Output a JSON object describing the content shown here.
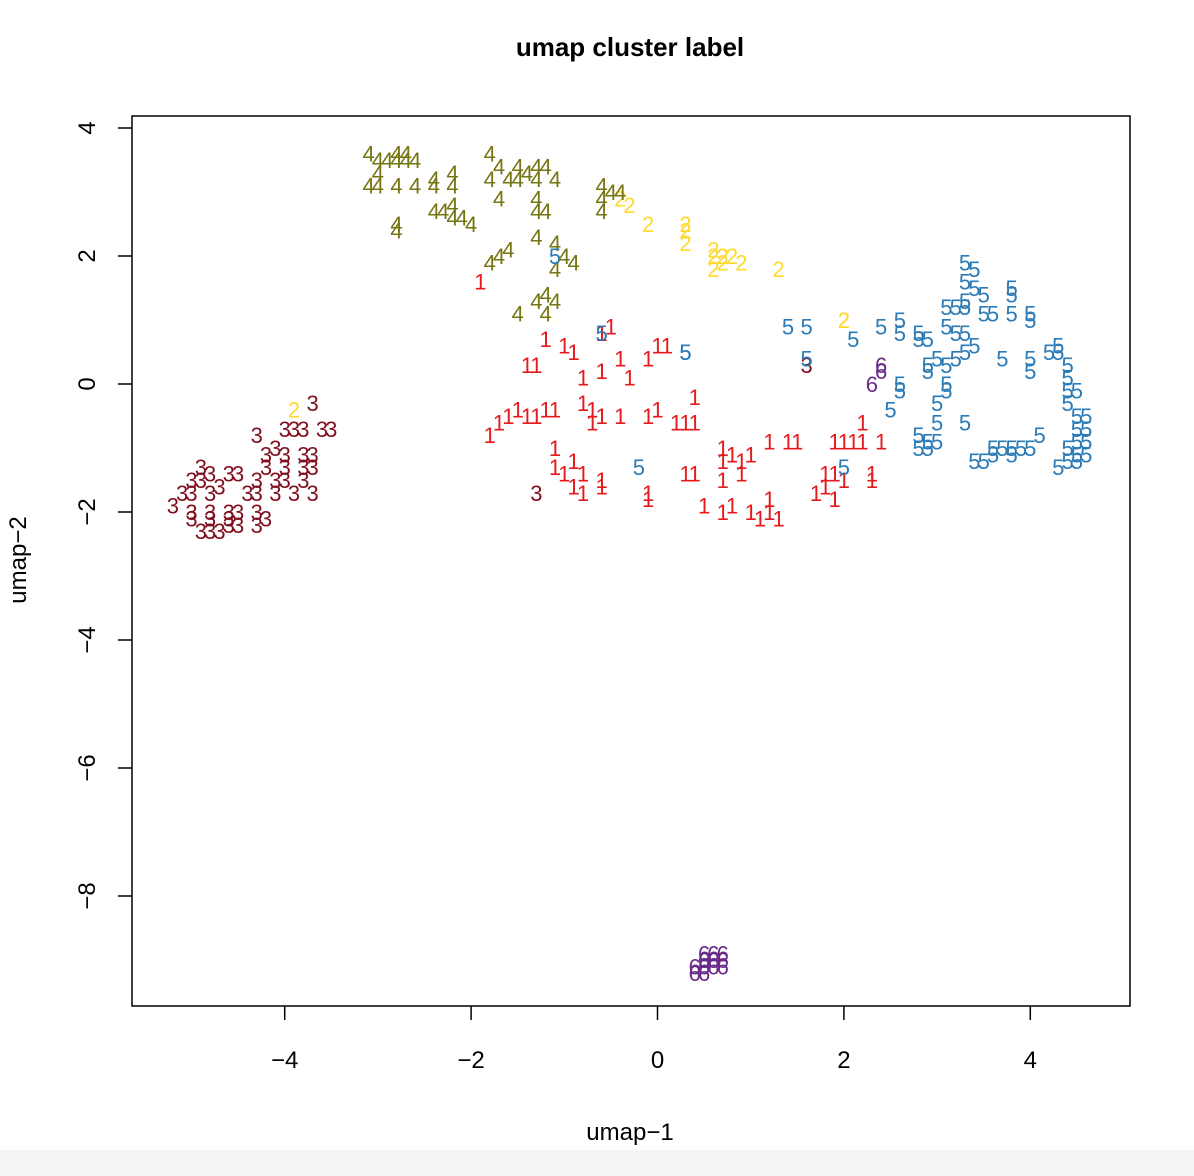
{
  "chart_data": {
    "type": "scatter",
    "title": "umap cluster label",
    "xlabel": "umap−1",
    "ylabel": "umap−2",
    "xlim": [
      -5.5,
      5.2
    ],
    "ylim": [
      -9.8,
      4.2
    ],
    "xticks": [
      -4,
      -2,
      0,
      2,
      4
    ],
    "yticks": [
      -8,
      -6,
      -4,
      -2,
      0,
      2,
      4
    ],
    "xtick_labels": [
      "−4",
      "−2",
      "0",
      "2",
      "4"
    ],
    "ytick_labels": [
      "−8",
      "−6",
      "−4",
      "−2",
      "0",
      "2",
      "4"
    ],
    "marker": "cluster number as text",
    "series": [
      {
        "name": "1",
        "color": "#e41a1c",
        "points": [
          [
            -1.9,
            1.6
          ],
          [
            -1.2,
            0.7
          ],
          [
            -1.3,
            0.3
          ],
          [
            -1.4,
            0.3
          ],
          [
            -0.9,
            0.5
          ],
          [
            -1.0,
            0.6
          ],
          [
            -0.6,
            0.8
          ],
          [
            -0.5,
            0.9
          ],
          [
            -0.4,
            0.4
          ],
          [
            -0.6,
            0.2
          ],
          [
            -0.8,
            0.1
          ],
          [
            -0.3,
            0.1
          ],
          [
            -0.1,
            0.4
          ],
          [
            0.0,
            0.6
          ],
          [
            0.1,
            0.6
          ],
          [
            0.4,
            -0.2
          ],
          [
            -1.5,
            -0.4
          ],
          [
            -1.6,
            -0.5
          ],
          [
            -1.4,
            -0.5
          ],
          [
            -1.3,
            -0.5
          ],
          [
            -1.8,
            -0.8
          ],
          [
            -1.7,
            -0.6
          ],
          [
            -1.2,
            -0.4
          ],
          [
            -1.1,
            -0.4
          ],
          [
            -0.8,
            -0.3
          ],
          [
            -0.7,
            -0.4
          ],
          [
            -0.6,
            -0.5
          ],
          [
            -0.7,
            -0.6
          ],
          [
            -0.4,
            -0.5
          ],
          [
            0.0,
            -0.4
          ],
          [
            -0.1,
            -0.5
          ],
          [
            0.2,
            -0.6
          ],
          [
            0.3,
            -0.6
          ],
          [
            0.4,
            -0.6
          ],
          [
            -1.1,
            -1.0
          ],
          [
            -1.1,
            -1.3
          ],
          [
            -1.0,
            -1.4
          ],
          [
            -0.9,
            -1.2
          ],
          [
            -0.8,
            -1.4
          ],
          [
            -0.9,
            -1.6
          ],
          [
            -0.8,
            -1.7
          ],
          [
            -0.6,
            -1.5
          ],
          [
            -0.6,
            -1.6
          ],
          [
            -0.1,
            -1.7
          ],
          [
            -0.1,
            -1.8
          ],
          [
            0.3,
            -1.4
          ],
          [
            0.4,
            -1.4
          ],
          [
            0.7,
            -1.0
          ],
          [
            0.7,
            -1.2
          ],
          [
            0.8,
            -1.1
          ],
          [
            0.9,
            -1.2
          ],
          [
            1.0,
            -1.1
          ],
          [
            0.9,
            -1.4
          ],
          [
            0.7,
            -1.5
          ],
          [
            1.2,
            -0.9
          ],
          [
            1.4,
            -0.9
          ],
          [
            1.5,
            -0.9
          ],
          [
            0.5,
            -1.9
          ],
          [
            0.7,
            -2.0
          ],
          [
            0.8,
            -1.9
          ],
          [
            1.0,
            -2.0
          ],
          [
            1.1,
            -2.1
          ],
          [
            1.2,
            -2.0
          ],
          [
            1.3,
            -2.1
          ],
          [
            1.2,
            -1.8
          ],
          [
            1.7,
            -1.7
          ],
          [
            1.8,
            -1.6
          ],
          [
            1.9,
            -1.8
          ],
          [
            1.8,
            -1.4
          ],
          [
            1.9,
            -1.4
          ],
          [
            2.0,
            -1.5
          ],
          [
            1.9,
            -0.9
          ],
          [
            2.0,
            -0.9
          ],
          [
            2.1,
            -0.9
          ],
          [
            2.2,
            -0.9
          ],
          [
            2.4,
            -0.9
          ],
          [
            2.2,
            -0.6
          ],
          [
            2.3,
            -1.4
          ],
          [
            2.3,
            -1.5
          ]
        ]
      },
      {
        "name": "2",
        "color": "#ffd92f",
        "points": [
          [
            -3.9,
            -0.4
          ],
          [
            -0.4,
            2.9
          ],
          [
            -0.3,
            2.8
          ],
          [
            -0.1,
            2.5
          ],
          [
            0.3,
            2.5
          ],
          [
            0.3,
            2.4
          ],
          [
            0.3,
            2.2
          ],
          [
            0.6,
            2.1
          ],
          [
            0.6,
            2.0
          ],
          [
            0.7,
            2.0
          ],
          [
            0.7,
            2.0
          ],
          [
            0.8,
            2.0
          ],
          [
            0.7,
            1.9
          ],
          [
            0.9,
            1.9
          ],
          [
            0.6,
            1.8
          ],
          [
            1.3,
            1.8
          ],
          [
            2.0,
            1.0
          ],
          [
            2.0,
            1.0
          ]
        ]
      },
      {
        "name": "3",
        "color": "#7f0f1f",
        "points": [
          [
            -3.7,
            -0.3
          ],
          [
            -3.8,
            -0.7
          ],
          [
            -3.6,
            -0.7
          ],
          [
            -3.5,
            -0.7
          ],
          [
            -4.0,
            -0.7
          ],
          [
            -3.9,
            -0.7
          ],
          [
            -4.3,
            -0.8
          ],
          [
            -4.1,
            -1.0
          ],
          [
            -4.2,
            -1.1
          ],
          [
            -4.0,
            -1.1
          ],
          [
            -3.8,
            -1.1
          ],
          [
            -3.7,
            -1.1
          ],
          [
            -4.2,
            -1.3
          ],
          [
            -4.0,
            -1.3
          ],
          [
            -3.8,
            -1.3
          ],
          [
            -3.7,
            -1.3
          ],
          [
            -4.3,
            -1.5
          ],
          [
            -4.1,
            -1.5
          ],
          [
            -4.0,
            -1.5
          ],
          [
            -3.8,
            -1.5
          ],
          [
            -4.4,
            -1.7
          ],
          [
            -4.3,
            -1.7
          ],
          [
            -4.1,
            -1.7
          ],
          [
            -3.9,
            -1.7
          ],
          [
            -3.7,
            -1.7
          ],
          [
            -4.9,
            -1.3
          ],
          [
            -4.8,
            -1.4
          ],
          [
            -4.6,
            -1.4
          ],
          [
            -4.5,
            -1.4
          ],
          [
            -5.0,
            -1.5
          ],
          [
            -4.9,
            -1.5
          ],
          [
            -4.7,
            -1.6
          ],
          [
            -5.1,
            -1.7
          ],
          [
            -5.0,
            -1.7
          ],
          [
            -4.8,
            -1.7
          ],
          [
            -5.2,
            -1.9
          ],
          [
            -5.0,
            -2.0
          ],
          [
            -4.8,
            -2.0
          ],
          [
            -4.6,
            -2.0
          ],
          [
            -4.5,
            -2.0
          ],
          [
            -4.3,
            -2.0
          ],
          [
            -5.0,
            -2.1
          ],
          [
            -4.8,
            -2.1
          ],
          [
            -4.6,
            -2.1
          ],
          [
            -4.5,
            -2.2
          ],
          [
            -4.3,
            -2.2
          ],
          [
            -4.2,
            -2.1
          ],
          [
            -4.9,
            -2.3
          ],
          [
            -4.8,
            -2.3
          ],
          [
            -4.7,
            -2.3
          ],
          [
            -4.6,
            -2.2
          ],
          [
            -1.3,
            -1.7
          ],
          [
            1.6,
            0.3
          ]
        ]
      },
      {
        "name": "4",
        "color": "#757611",
        "points": [
          [
            -3.1,
            3.6
          ],
          [
            -3.0,
            3.5
          ],
          [
            -3.0,
            3.3
          ],
          [
            -3.1,
            3.1
          ],
          [
            -3.0,
            3.1
          ],
          [
            -2.9,
            3.5
          ],
          [
            -2.8,
            3.6
          ],
          [
            -2.8,
            3.5
          ],
          [
            -2.7,
            3.5
          ],
          [
            -2.7,
            3.6
          ],
          [
            -2.6,
            3.5
          ],
          [
            -2.8,
            3.1
          ],
          [
            -2.6,
            3.1
          ],
          [
            -2.4,
            3.2
          ],
          [
            -2.4,
            3.1
          ],
          [
            -2.2,
            3.3
          ],
          [
            -2.2,
            3.1
          ],
          [
            -2.4,
            2.7
          ],
          [
            -2.3,
            2.7
          ],
          [
            -2.2,
            2.8
          ],
          [
            -2.2,
            2.6
          ],
          [
            -2.1,
            2.6
          ],
          [
            -2.0,
            2.5
          ],
          [
            -2.8,
            2.5
          ],
          [
            -2.8,
            2.4
          ],
          [
            -1.8,
            3.2
          ],
          [
            -1.8,
            3.6
          ],
          [
            -1.6,
            3.2
          ],
          [
            -1.5,
            3.2
          ],
          [
            -1.4,
            3.3
          ],
          [
            -1.3,
            3.2
          ],
          [
            -1.2,
            3.4
          ],
          [
            -1.1,
            3.2
          ],
          [
            -1.3,
            3.4
          ],
          [
            -1.5,
            3.4
          ],
          [
            -1.7,
            3.4
          ],
          [
            -1.7,
            2.9
          ],
          [
            -1.3,
            2.9
          ],
          [
            -1.3,
            2.7
          ],
          [
            -1.2,
            2.7
          ],
          [
            -1.3,
            2.3
          ],
          [
            -1.1,
            2.2
          ],
          [
            -1.6,
            2.1
          ],
          [
            -1.7,
            2.0
          ],
          [
            -1.8,
            1.9
          ],
          [
            -1.0,
            2.0
          ],
          [
            -0.9,
            1.9
          ],
          [
            -1.1,
            1.8
          ],
          [
            -1.2,
            1.4
          ],
          [
            -1.3,
            1.3
          ],
          [
            -1.1,
            1.3
          ],
          [
            -1.5,
            1.1
          ],
          [
            -1.2,
            1.1
          ],
          [
            -0.6,
            3.1
          ],
          [
            -0.6,
            2.9
          ],
          [
            -0.5,
            3.0
          ],
          [
            -0.4,
            3.0
          ],
          [
            -0.6,
            2.7
          ]
        ]
      },
      {
        "name": "5",
        "color": "#2c7bb6",
        "points": [
          [
            -1.1,
            2.0
          ],
          [
            -0.6,
            0.8
          ],
          [
            0.3,
            0.5
          ],
          [
            0.3,
            0.5
          ],
          [
            -0.2,
            -1.3
          ],
          [
            1.4,
            0.9
          ],
          [
            1.6,
            0.9
          ],
          [
            1.6,
            0.4
          ],
          [
            2.1,
            0.7
          ],
          [
            2.0,
            -1.3
          ],
          [
            2.4,
            0.9
          ],
          [
            2.6,
            1.0
          ],
          [
            2.6,
            0.8
          ],
          [
            2.8,
            0.8
          ],
          [
            2.8,
            0.7
          ],
          [
            2.9,
            0.7
          ],
          [
            2.6,
            0.0
          ],
          [
            2.6,
            -0.1
          ],
          [
            2.5,
            -0.4
          ],
          [
            2.9,
            0.2
          ],
          [
            2.9,
            0.3
          ],
          [
            3.0,
            0.4
          ],
          [
            3.1,
            0.3
          ],
          [
            3.1,
            0.0
          ],
          [
            3.1,
            -0.1
          ],
          [
            3.0,
            -0.3
          ],
          [
            3.0,
            -0.6
          ],
          [
            3.3,
            -0.6
          ],
          [
            2.8,
            -0.8
          ],
          [
            2.9,
            -0.9
          ],
          [
            2.9,
            -1.0
          ],
          [
            2.8,
            -1.0
          ],
          [
            3.0,
            -0.9
          ],
          [
            3.3,
            1.9
          ],
          [
            3.4,
            1.8
          ],
          [
            3.3,
            1.6
          ],
          [
            3.4,
            1.5
          ],
          [
            3.3,
            1.3
          ],
          [
            3.3,
            1.2
          ],
          [
            3.5,
            1.4
          ],
          [
            3.8,
            1.4
          ],
          [
            3.8,
            1.5
          ],
          [
            3.5,
            1.1
          ],
          [
            3.6,
            1.1
          ],
          [
            3.8,
            1.1
          ],
          [
            4.0,
            1.0
          ],
          [
            4.0,
            1.1
          ],
          [
            3.1,
            1.2
          ],
          [
            3.2,
            1.2
          ],
          [
            3.1,
            0.9
          ],
          [
            3.2,
            0.8
          ],
          [
            3.3,
            0.8
          ],
          [
            3.4,
            0.6
          ],
          [
            3.3,
            0.5
          ],
          [
            3.2,
            0.4
          ],
          [
            3.7,
            0.4
          ],
          [
            4.0,
            0.4
          ],
          [
            4.0,
            0.2
          ],
          [
            4.2,
            0.5
          ],
          [
            4.3,
            0.6
          ],
          [
            4.3,
            0.5
          ],
          [
            4.4,
            0.3
          ],
          [
            4.4,
            0.1
          ],
          [
            4.4,
            -0.1
          ],
          [
            4.5,
            -0.1
          ],
          [
            4.4,
            -0.3
          ],
          [
            4.5,
            -0.5
          ],
          [
            4.6,
            -0.5
          ],
          [
            4.5,
            -0.7
          ],
          [
            4.6,
            -0.7
          ],
          [
            4.5,
            -0.9
          ],
          [
            4.6,
            -0.9
          ],
          [
            4.4,
            -1.0
          ],
          [
            4.5,
            -1.1
          ],
          [
            4.6,
            -1.1
          ],
          [
            4.5,
            -1.2
          ],
          [
            4.4,
            -1.2
          ],
          [
            4.3,
            -1.3
          ],
          [
            4.1,
            -0.8
          ],
          [
            4.0,
            -1.0
          ],
          [
            3.9,
            -1.0
          ],
          [
            3.8,
            -1.0
          ],
          [
            3.7,
            -1.0
          ],
          [
            3.6,
            -1.0
          ],
          [
            3.8,
            -1.1
          ],
          [
            3.6,
            -1.1
          ],
          [
            3.5,
            -1.2
          ],
          [
            3.4,
            -1.2
          ]
        ]
      },
      {
        "name": "6",
        "color": "#6a2a8a",
        "points": [
          [
            2.4,
            0.3
          ],
          [
            2.4,
            0.2
          ],
          [
            2.3,
            0.0
          ],
          [
            0.4,
            -9.2
          ],
          [
            0.5,
            -9.1
          ],
          [
            0.5,
            -9.0
          ],
          [
            0.6,
            -9.0
          ],
          [
            0.7,
            -9.0
          ],
          [
            0.5,
            -8.9
          ],
          [
            0.6,
            -8.9
          ],
          [
            0.4,
            -9.1
          ],
          [
            0.5,
            -9.2
          ],
          [
            0.6,
            -9.1
          ],
          [
            0.7,
            -9.1
          ],
          [
            0.6,
            -9.0
          ],
          [
            0.5,
            -9.0
          ],
          [
            0.7,
            -8.9
          ]
        ]
      }
    ]
  }
}
